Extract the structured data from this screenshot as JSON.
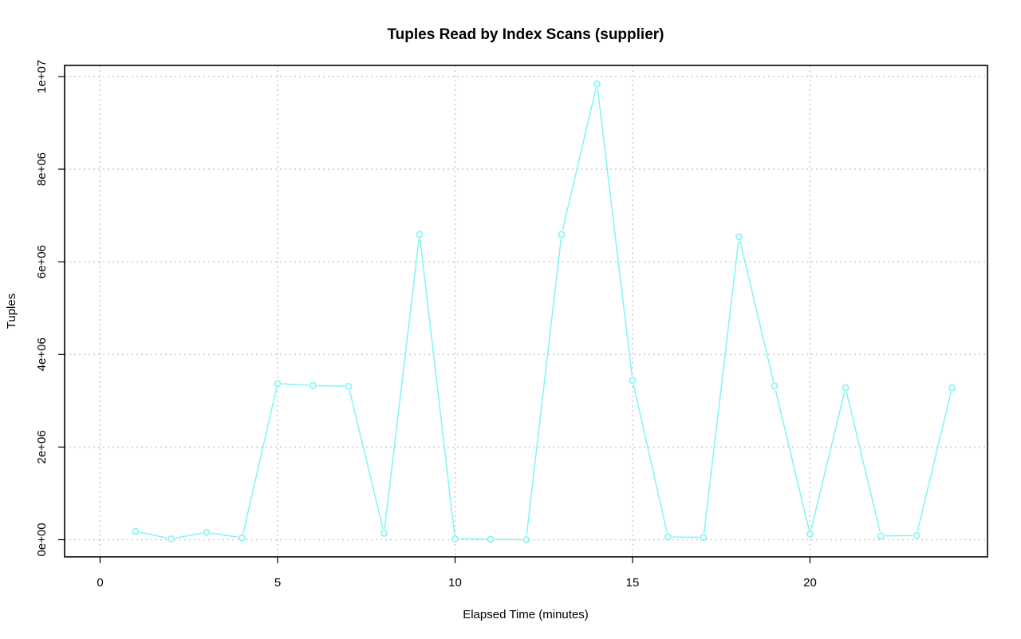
{
  "chart_data": {
    "type": "line",
    "title": "Tuples Read by Index Scans (supplier)",
    "xlabel": "Elapsed Time (minutes)",
    "ylabel": "Tuples",
    "xlim": [
      -1,
      25
    ],
    "ylim": [
      -370000,
      10240000
    ],
    "x_ticks": [
      0,
      5,
      10,
      15,
      20
    ],
    "x_tick_labels": [
      "0",
      "5",
      "10",
      "15",
      "20"
    ],
    "y_ticks": [
      0,
      2000000,
      4000000,
      6000000,
      8000000,
      10000000
    ],
    "y_tick_labels": [
      "0e+00",
      "2e+06",
      "4e+06",
      "6e+06",
      "8e+06",
      "1e+07"
    ],
    "grid": true,
    "legend": "none",
    "series": [
      {
        "color": "#7ff5f5",
        "marker": "open-circle",
        "x": [
          1,
          2,
          3,
          4,
          5,
          6,
          7,
          8,
          9,
          10,
          11,
          12,
          13,
          14,
          15,
          16,
          17,
          18,
          19,
          20,
          21,
          22,
          23,
          24
        ],
        "values": [
          180000,
          20000,
          160000,
          40000,
          3370000,
          3330000,
          3310000,
          140000,
          6590000,
          20000,
          10000,
          0,
          6590000,
          9840000,
          3440000,
          60000,
          50000,
          6540000,
          3320000,
          120000,
          3280000,
          80000,
          90000,
          3280000
        ]
      }
    ]
  }
}
